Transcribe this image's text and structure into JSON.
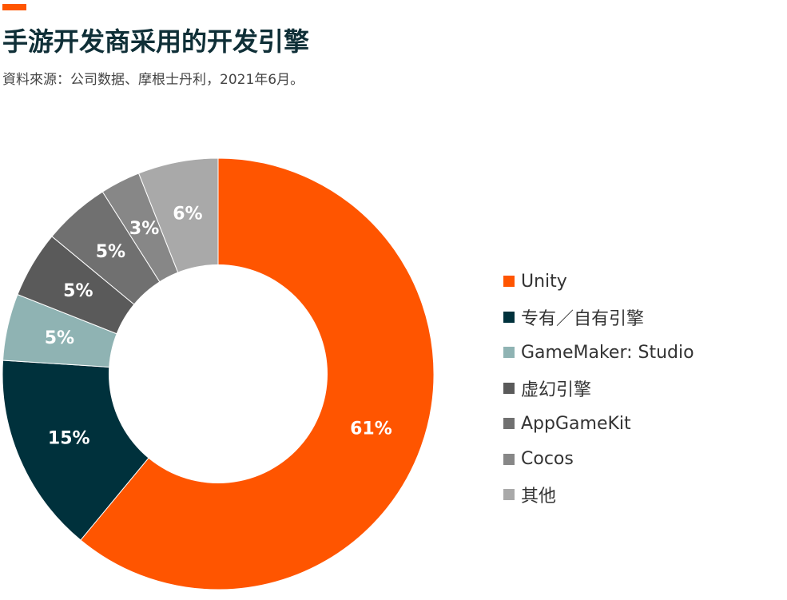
{
  "header": {
    "title": "手游开发商采用的开发引擎",
    "subtitle": "資料來源：公司数据、摩根士丹利，2021年6月。",
    "accent_color": "#FF5500"
  },
  "chart_data": {
    "type": "pie",
    "donut": true,
    "title": "手游开发商采用的开发引擎",
    "subtitle": "資料來源：公司数据、摩根士丹利，2021年6月。",
    "legend_position": "right",
    "slices": [
      {
        "label": "Unity",
        "value": 61,
        "display": "61%",
        "color": "#FF5500",
        "text_color": "#FFFFFF"
      },
      {
        "label": "专有／自有引擎",
        "value": 15,
        "display": "15%",
        "color": "#00313C",
        "text_color": "#FFFFFF"
      },
      {
        "label": "GameMaker: Studio",
        "value": 5,
        "display": "5%",
        "color": "#8FB3B3",
        "text_color": "#FFFFFF"
      },
      {
        "label": "虚幻引擎",
        "value": 5,
        "display": "5%",
        "color": "#5A5A5A",
        "text_color": "#FFFFFF"
      },
      {
        "label": "AppGameKit",
        "value": 5,
        "display": "5%",
        "color": "#707070",
        "text_color": "#FFFFFF"
      },
      {
        "label": "Cocos",
        "value": 3,
        "display": "3%",
        "color": "#878787",
        "text_color": "#FFFFFF"
      },
      {
        "label": "其他",
        "value": 6,
        "display": "6%",
        "color": "#A9A9A9",
        "text_color": "#FFFFFF"
      }
    ]
  }
}
